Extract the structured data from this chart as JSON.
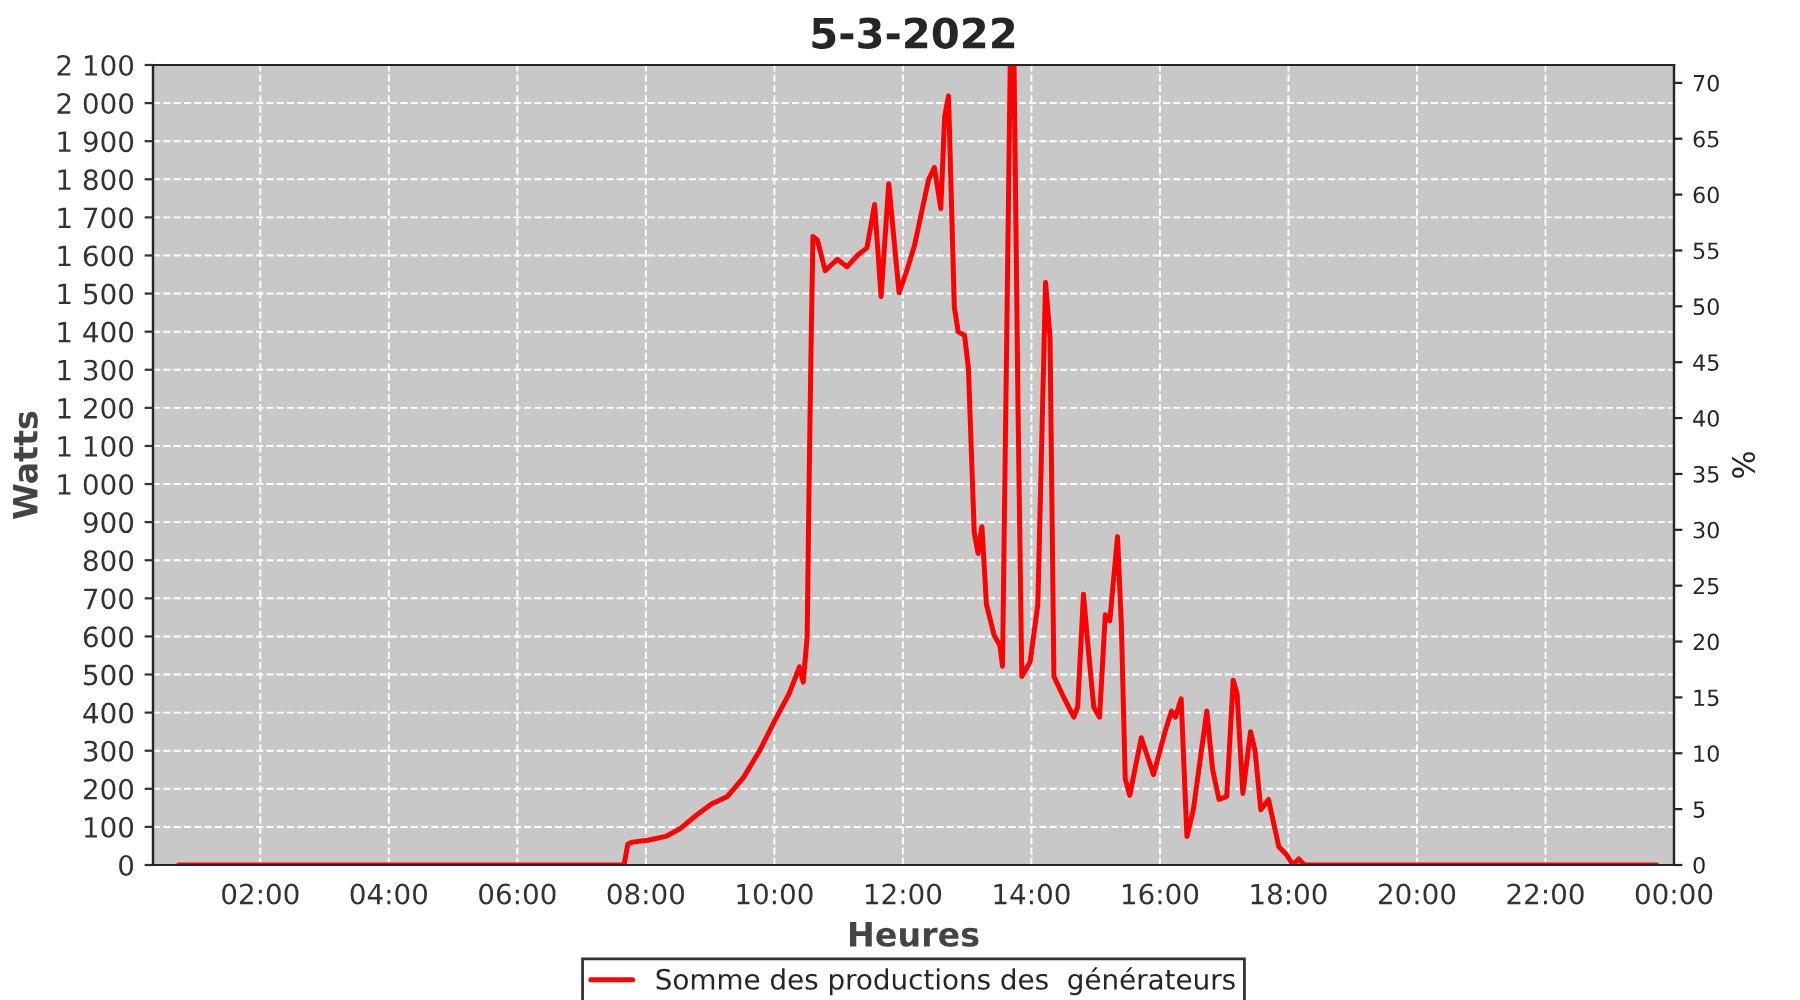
{
  "chart_data": {
    "type": "line",
    "title": "5-3-2022",
    "xlabel": "Heures",
    "ylabel": "Watts",
    "y2label": "%",
    "xlim": [
      0.33,
      24.0
    ],
    "xticks": [
      {
        "value": 2,
        "label": "02:00"
      },
      {
        "value": 4,
        "label": "04:00"
      },
      {
        "value": 6,
        "label": "06:00"
      },
      {
        "value": 8,
        "label": "08:00"
      },
      {
        "value": 10,
        "label": "10:00"
      },
      {
        "value": 12,
        "label": "12:00"
      },
      {
        "value": 14,
        "label": "14:00"
      },
      {
        "value": 16,
        "label": "16:00"
      },
      {
        "value": 18,
        "label": "18:00"
      },
      {
        "value": 20,
        "label": "20:00"
      },
      {
        "value": 22,
        "label": "22:00"
      },
      {
        "value": 24,
        "label": "00:00"
      }
    ],
    "ylim": [
      0,
      2100
    ],
    "yticks": [
      0,
      100,
      200,
      300,
      400,
      500,
      600,
      700,
      800,
      900,
      {
        "value": 1000,
        "label": "1 000"
      },
      {
        "value": 1100,
        "label": "1 100"
      },
      {
        "value": 1200,
        "label": "1 200"
      },
      {
        "value": 1300,
        "label": "1 300"
      },
      {
        "value": 1400,
        "label": "1 400"
      },
      {
        "value": 1500,
        "label": "1 500"
      },
      {
        "value": 1600,
        "label": "1 600"
      },
      {
        "value": 1700,
        "label": "1 700"
      },
      {
        "value": 1800,
        "label": "1 800"
      },
      {
        "value": 1900,
        "label": "1 900"
      },
      {
        "value": 2000,
        "label": "2 000"
      },
      {
        "value": 2100,
        "label": "2 100"
      }
    ],
    "y2lim": [
      0,
      71.6
    ],
    "y2ticks": [
      0,
      5,
      10,
      15,
      20,
      25,
      30,
      35,
      40,
      45,
      50,
      55,
      60,
      65,
      70
    ],
    "grid": true,
    "legend": "bottom",
    "marker": "none",
    "line_style": "solid",
    "series": [
      {
        "name": "Somme des productions des  générateurs",
        "color": "#ff0000",
        "x": [
          0.73,
          7.66,
          7.72,
          7.79,
          8.03,
          8.31,
          8.53,
          8.78,
          9.02,
          9.27,
          9.52,
          9.77,
          10.01,
          10.23,
          10.39,
          10.45,
          10.51,
          10.54,
          10.57,
          10.6,
          10.67,
          10.79,
          10.98,
          11.13,
          11.29,
          11.44,
          11.56,
          11.66,
          11.78,
          11.94,
          12.06,
          12.18,
          12.4,
          12.49,
          12.59,
          12.65,
          12.71,
          12.8,
          12.86,
          12.96,
          13.02,
          13.11,
          13.17,
          13.23,
          13.3,
          13.42,
          13.51,
          13.55,
          13.67,
          13.73,
          13.79,
          13.85,
          13.98,
          14.1,
          14.22,
          14.29,
          14.35,
          14.5,
          14.66,
          14.72,
          14.81,
          14.88,
          14.97,
          15.06,
          15.15,
          15.22,
          15.34,
          15.4,
          15.46,
          15.53,
          15.71,
          15.9,
          16.08,
          16.18,
          16.24,
          16.33,
          16.42,
          16.52,
          16.73,
          16.82,
          16.92,
          17.04,
          17.14,
          17.2,
          17.29,
          17.41,
          17.48,
          17.57,
          17.69,
          17.85,
          17.97,
          18.07,
          18.16,
          18.25,
          23.73
        ],
        "values": [
          0,
          0,
          55,
          60,
          65,
          75,
          95,
          130,
          160,
          180,
          230,
          300,
          380,
          450,
          520,
          480,
          600,
          1000,
          1350,
          1650,
          1640,
          1560,
          1590,
          1570,
          1600,
          1620,
          1734,
          1492,
          1788,
          1502,
          1560,
          1626,
          1799,
          1831,
          1723,
          1965,
          2019,
          1465,
          1400,
          1390,
          1303,
          872,
          818,
          888,
          684,
          603,
          576,
          522,
          2100,
          2100,
          1222,
          495,
          533,
          684,
          1529,
          1384,
          495,
          441,
          388,
          415,
          711,
          576,
          415,
          388,
          657,
          641,
          862,
          630,
          226,
          183,
          334,
          237,
          350,
          404,
          388,
          436,
          75,
          145,
          404,
          250,
          172,
          180,
          485,
          450,
          188,
          350,
          300,
          145,
          172,
          48,
          27,
          0,
          16,
          0,
          0
        ]
      }
    ]
  }
}
